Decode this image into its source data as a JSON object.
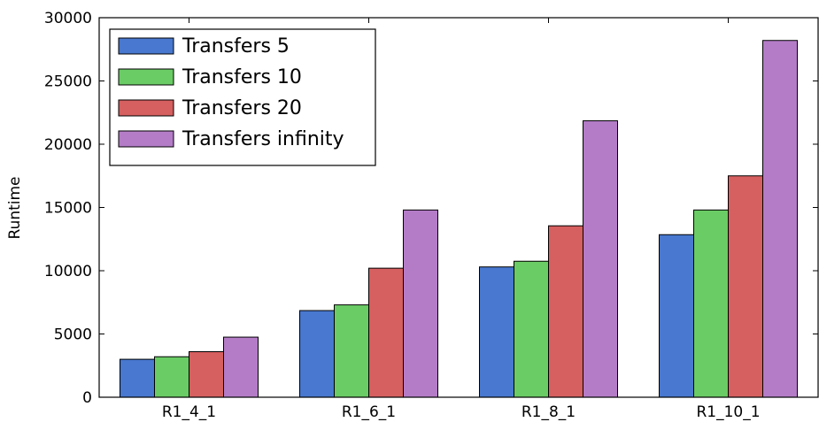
{
  "chart_data": {
    "type": "bar",
    "title": "",
    "xlabel": "",
    "ylabel": "Runtime",
    "ylim": [
      0,
      30000
    ],
    "yticks": [
      0,
      5000,
      10000,
      15000,
      20000,
      25000,
      30000
    ],
    "categories": [
      "R1_4_1",
      "R1_6_1",
      "R1_8_1",
      "R1_10_1"
    ],
    "series": [
      {
        "name": "Transfers 5",
        "color": "#4878cf",
        "values": [
          3000,
          6850,
          10300,
          12850
        ]
      },
      {
        "name": "Transfers 10",
        "color": "#6acc65",
        "values": [
          3200,
          7300,
          10750,
          14800
        ]
      },
      {
        "name": "Transfers 20",
        "color": "#d65f5f",
        "values": [
          3600,
          10200,
          13550,
          17500
        ]
      },
      {
        "name": "Transfers infinity",
        "color": "#b47cc7",
        "values": [
          4750,
          14800,
          21850,
          28200
        ]
      }
    ],
    "legend": {
      "position": "top-left"
    },
    "grid": false
  }
}
